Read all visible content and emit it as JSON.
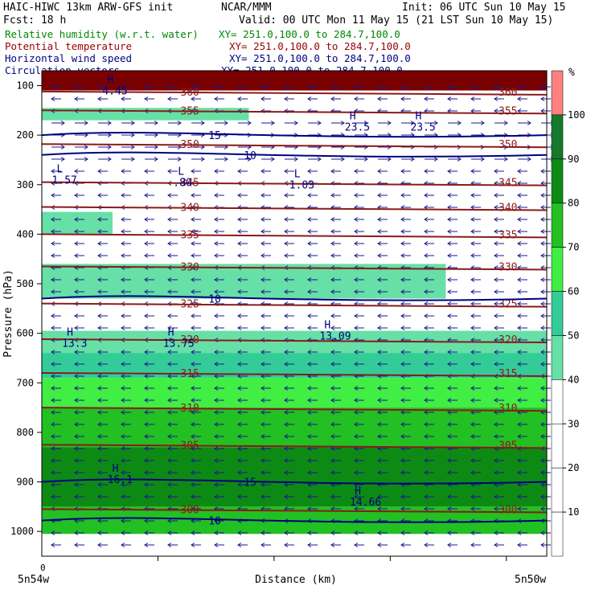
{
  "header": {
    "model": "HAIC-HIWC 13km ARW-GFS init",
    "org": "NCAR/MMM",
    "init": "Init: 06 UTC Sun 10 May 15",
    "fcst": "Fcst:   18 h",
    "valid": "Valid: 00 UTC Mon 11 May 15 (21 LST Sun 10 May 15)",
    "fields": [
      {
        "name": "Relative humidity (w.r.t. water)",
        "xy": "XY= 251.0,100.0 to 284.7,100.0",
        "color": "#008800"
      },
      {
        "name": "Potential temperature",
        "xy": "XY= 251.0,100.0 to 284.7,100.0",
        "color": "#990000"
      },
      {
        "name": "Horizontal wind speed",
        "xy": "XY= 251.0,100.0 to 284.7,100.0",
        "color": "#000080"
      },
      {
        "name": "Circulation vectors",
        "xy": "XY= 251.0,100.0 to 284.7,100.0",
        "color": "#000080"
      }
    ]
  },
  "chart_data": {
    "type": "heatmap",
    "title": "HAIC-HIWC 13km ARW-GFS init",
    "xlabel": "Distance (km)",
    "ylabel": "Pressure (hPa)",
    "x_tick_label": "0",
    "x_left_label": "5n54w",
    "x_right_label": "5n50w",
    "y_ticks": [
      100,
      200,
      300,
      400,
      500,
      600,
      700,
      800,
      900,
      1000
    ],
    "ylim": [
      1050,
      70
    ],
    "colorbar": {
      "unit": "%",
      "levels": [
        10,
        20,
        30,
        40,
        50,
        60,
        70,
        80,
        90,
        100
      ],
      "colors": {
        "50": "#66e0a6",
        "60": "#33cc99",
        "70": "#40ee44",
        "80": "#22c022",
        "90": "#0d8a14",
        "100": "#167a2e",
        "110": "#ff8080"
      }
    },
    "rh_bands": [
      {
        "p_top": 70,
        "p_bot": 110,
        "color": "#7a0000"
      },
      {
        "p_top": 110,
        "p_bot": 145,
        "color": "#ffffff"
      },
      {
        "p_top": 145,
        "p_bot": 170,
        "color": "#66e0a6",
        "x_end": 0.41
      },
      {
        "p_top": 355,
        "p_bot": 400,
        "color": "#66e0a6",
        "x_end": 0.14
      },
      {
        "p_top": 460,
        "p_bot": 530,
        "color": "#66e0a6",
        "x_end": 0.8
      },
      {
        "p_top": 595,
        "p_bot": 660,
        "color": "#66e0a6"
      },
      {
        "p_top": 640,
        "p_bot": 690,
        "color": "#33cc99"
      },
      {
        "p_top": 690,
        "p_bot": 750,
        "color": "#40ee44"
      },
      {
        "p_top": 750,
        "p_bot": 830,
        "color": "#22c022"
      },
      {
        "p_top": 830,
        "p_bot": 950,
        "color": "#0d8a14"
      },
      {
        "p_top": 950,
        "p_bot": 1005,
        "color": "#22c022"
      }
    ],
    "theta_contours": [
      {
        "label": "360",
        "p": 112
      },
      {
        "label": "355",
        "p": 150
      },
      {
        "label": "350",
        "p": 218
      },
      {
        "label": "345",
        "p": 295
      },
      {
        "label": "340",
        "p": 345
      },
      {
        "label": "335",
        "p": 400
      },
      {
        "label": "330",
        "p": 465
      },
      {
        "label": "325",
        "p": 540
      },
      {
        "label": "320",
        "p": 612
      },
      {
        "label": "315",
        "p": 680
      },
      {
        "label": "310",
        "p": 750
      },
      {
        "label": "305",
        "p": 825
      },
      {
        "label": "300",
        "p": 955
      }
    ],
    "wind_contours": [
      {
        "label": "15",
        "p": 200
      },
      {
        "label": "10",
        "p": 240
      },
      {
        "label": "10",
        "p": 530
      },
      {
        "label": "15",
        "p": 900
      },
      {
        "label": "10",
        "p": 978
      }
    ],
    "extrema": [
      {
        "type": "H",
        "value": "4.45",
        "x": 0.12,
        "p": 95
      },
      {
        "type": "H",
        "value": "23.5",
        "x": 0.6,
        "p": 168
      },
      {
        "type": "H",
        "value": "23.5",
        "x": 0.73,
        "p": 168
      },
      {
        "type": "L",
        "value": "1.57",
        "x": 0.02,
        "p": 275
      },
      {
        "type": "L",
        "value": ".80",
        "x": 0.26,
        "p": 280
      },
      {
        "type": "L",
        "value": "1.03",
        "x": 0.49,
        "p": 285
      },
      {
        "type": "H",
        "value": "13.3",
        "x": 0.04,
        "p": 605
      },
      {
        "type": "H",
        "value": "13.75",
        "x": 0.24,
        "p": 605
      },
      {
        "type": "H",
        "value": "13.09",
        "x": 0.55,
        "p": 590
      },
      {
        "type": "H",
        "value": "16.1",
        "x": 0.13,
        "p": 880
      },
      {
        "type": "H",
        "value": "14.66",
        "x": 0.61,
        "p": 925
      }
    ]
  }
}
